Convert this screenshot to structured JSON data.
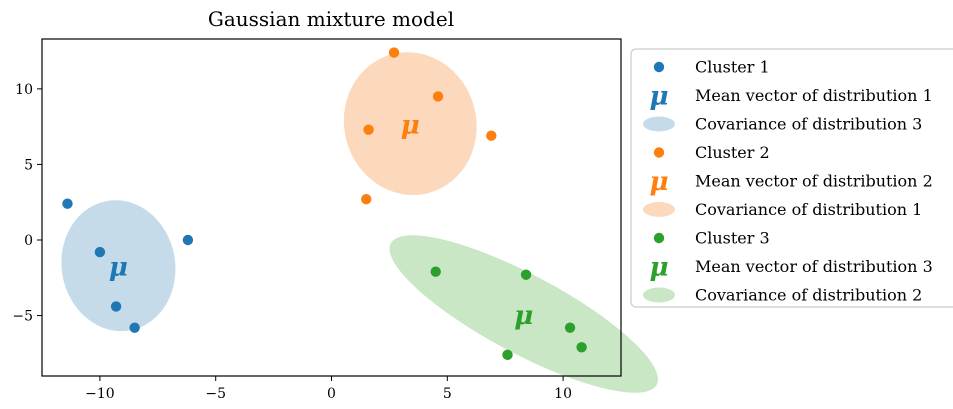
{
  "chart_data": {
    "type": "scatter",
    "title": "Gaussian mixture model",
    "xlabel": "",
    "ylabel": "",
    "xlim": [
      -12.5,
      12.5
    ],
    "ylim": [
      -9.0,
      13.3
    ],
    "xticks": [
      -10,
      -5,
      0,
      5,
      10
    ],
    "xtick_labels": [
      "−10",
      "−5",
      "0",
      "5",
      "10"
    ],
    "yticks": [
      -5,
      0,
      5,
      10
    ],
    "ytick_labels": [
      "−5",
      "0",
      "5",
      "10"
    ],
    "grid": false,
    "legend_position": "outside-right",
    "mean_symbol": "μ",
    "clusters": [
      {
        "name": "Cluster 1",
        "color": "#1f77b4",
        "points": [
          [
            -11.4,
            2.4
          ],
          [
            -10.0,
            -0.8
          ],
          [
            -9.3,
            -4.4
          ],
          [
            -8.5,
            -5.8
          ],
          [
            -6.2,
            0.0
          ]
        ],
        "mean": [
          -9.2,
          -1.7
        ],
        "covariance_ellipse": {
          "center": [
            -9.2,
            -1.7
          ],
          "semi_axis_x": 2.45,
          "semi_axis_y": 4.35,
          "angle_deg": 10,
          "fill": "#c6dbea"
        }
      },
      {
        "name": "Cluster 2",
        "color": "#ff7f0e",
        "points": [
          [
            1.5,
            2.7
          ],
          [
            1.6,
            7.3
          ],
          [
            2.7,
            12.4
          ],
          [
            4.6,
            9.5
          ],
          [
            6.9,
            6.9
          ]
        ],
        "mean": [
          3.4,
          7.7
        ],
        "covariance_ellipse": {
          "center": [
            3.4,
            7.7
          ],
          "semi_axis_x": 2.85,
          "semi_axis_y": 4.75,
          "angle_deg": 15,
          "fill": "#fcd9bc"
        }
      },
      {
        "name": "Cluster 3",
        "color": "#2ca02c",
        "points": [
          [
            4.5,
            -2.1
          ],
          [
            7.6,
            -7.6
          ],
          [
            8.4,
            -2.3
          ],
          [
            10.3,
            -5.8
          ],
          [
            10.8,
            -7.1
          ]
        ],
        "mean": [
          8.3,
          -4.9
        ],
        "covariance_ellipse": {
          "center": [
            8.3,
            -4.9
          ],
          "semi_axis_x": 6.5,
          "semi_axis_y": 2.6,
          "angle_deg": -28,
          "fill": "#c9e6c5"
        }
      }
    ],
    "legend": [
      {
        "kind": "dot",
        "color": "#1f77b4",
        "label": "Cluster 1"
      },
      {
        "kind": "mu",
        "color": "#1f77b4",
        "label": "Mean vector of distribution 1"
      },
      {
        "kind": "ellipse",
        "color": "#c6dbea",
        "label": "Covariance of distribution 3"
      },
      {
        "kind": "dot",
        "color": "#ff7f0e",
        "label": "Cluster 2"
      },
      {
        "kind": "mu",
        "color": "#ff7f0e",
        "label": "Mean vector of distribution 2"
      },
      {
        "kind": "ellipse",
        "color": "#fcd9bc",
        "label": "Covariance of distribution 1"
      },
      {
        "kind": "dot",
        "color": "#2ca02c",
        "label": "Cluster 3"
      },
      {
        "kind": "mu",
        "color": "#2ca02c",
        "label": "Mean vector of distribution 3"
      },
      {
        "kind": "ellipse",
        "color": "#c9e6c5",
        "label": "Covariance of distribution 2"
      }
    ]
  }
}
